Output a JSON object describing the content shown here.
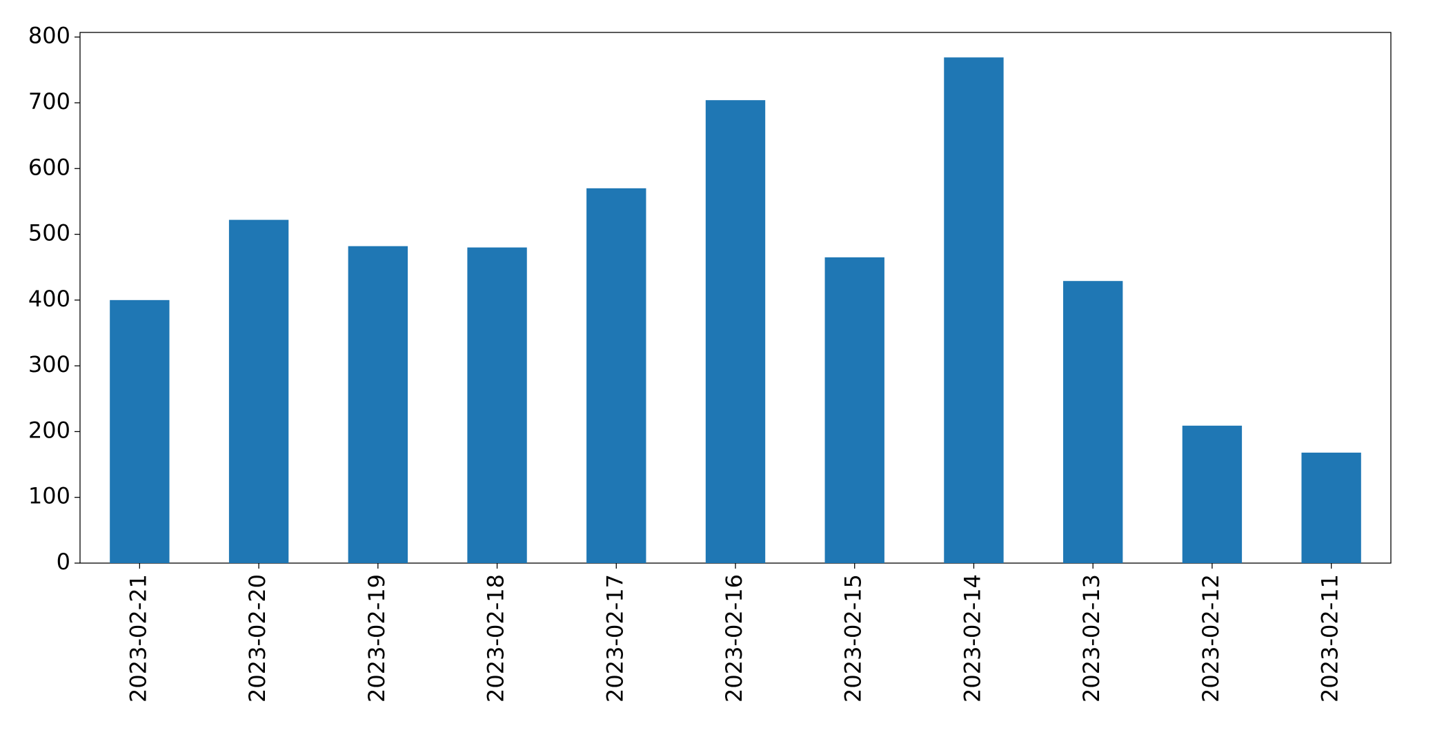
{
  "chart_data": {
    "type": "bar",
    "categories": [
      "2023-02-21",
      "2023-02-20",
      "2023-02-19",
      "2023-02-18",
      "2023-02-17",
      "2023-02-16",
      "2023-02-15",
      "2023-02-14",
      "2023-02-13",
      "2023-02-12",
      "2023-02-11"
    ],
    "values": [
      400,
      522,
      482,
      480,
      570,
      704,
      465,
      769,
      429,
      209,
      168
    ],
    "color": "#1f77b4",
    "ylim": [
      0,
      807
    ],
    "yticks": [
      0,
      100,
      200,
      300,
      400,
      500,
      600,
      700,
      800
    ],
    "grid": false
  }
}
